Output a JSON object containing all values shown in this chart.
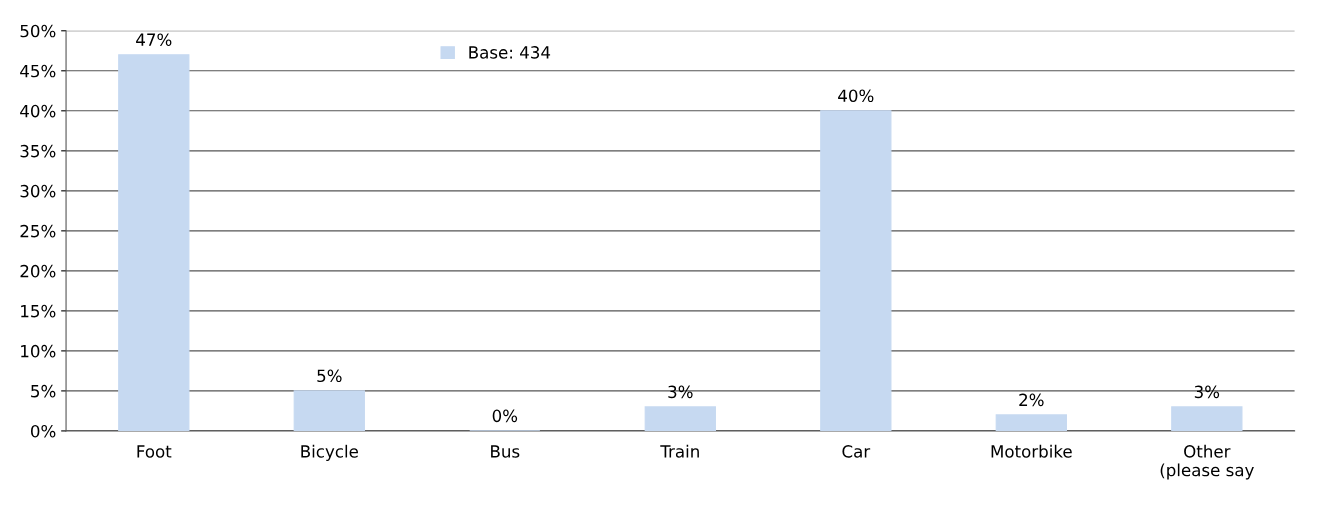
{
  "chart_data": {
    "type": "bar",
    "categories": [
      "Foot",
      "Bicycle",
      "Bus",
      "Train",
      "Car",
      "Motorbike",
      "Other\n(please say"
    ],
    "series": [
      {
        "name": "Base: 434",
        "color": "#c6d9f1",
        "values": [
          47,
          5,
          0,
          3,
          40,
          2,
          3
        ],
        "value_labels": [
          "47%",
          "5%",
          "0%",
          "3%",
          "40%",
          "2%",
          "3%"
        ]
      }
    ],
    "ylim": [
      0,
      50
    ],
    "yticks": [
      {
        "value": 0,
        "label": "0%"
      },
      {
        "value": 5,
        "label": "5%"
      },
      {
        "value": 10,
        "label": "10%"
      },
      {
        "value": 15,
        "label": "15%"
      },
      {
        "value": 20,
        "label": "20%"
      },
      {
        "value": 25,
        "label": "25%"
      },
      {
        "value": 30,
        "label": "30%"
      },
      {
        "value": 35,
        "label": "35%"
      },
      {
        "value": 40,
        "label": "40%"
      },
      {
        "value": 45,
        "label": "45%"
      },
      {
        "value": 50,
        "label": "50%"
      }
    ],
    "grid": "y",
    "legend": "top"
  }
}
